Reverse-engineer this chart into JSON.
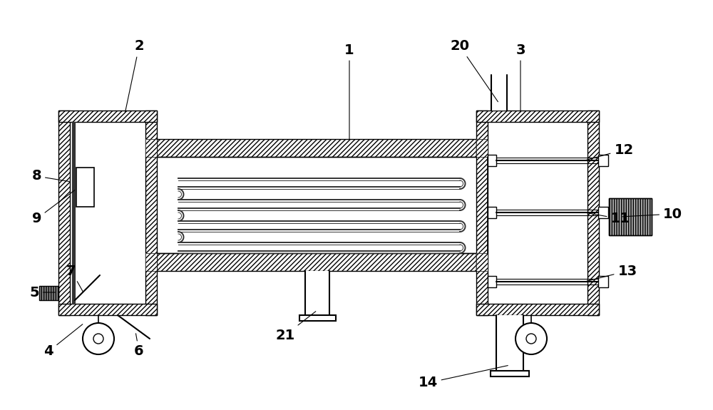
{
  "fig_width": 10.0,
  "fig_height": 5.75,
  "dpi": 100,
  "bg_color": "#ffffff",
  "hatch_thickness": 1.0,
  "main_lw": 1.5,
  "coil_lw": 1.4,
  "coil_color": "#333333",
  "wall_thickness": 0.028,
  "label_fontsize": 14,
  "label_fontweight": "bold"
}
